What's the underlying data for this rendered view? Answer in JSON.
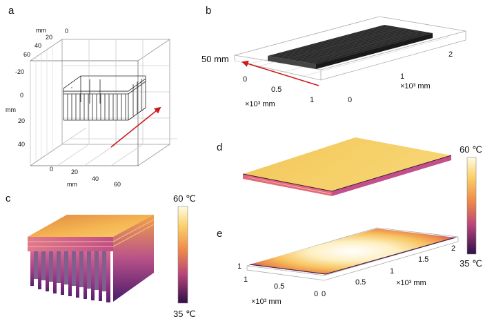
{
  "panels": {
    "a": {
      "label": "a",
      "unit": "mm",
      "top_ticks": [
        "0",
        "20",
        "40",
        "60"
      ],
      "left_ticks": [
        "-20",
        "0",
        "20",
        "40"
      ],
      "bottom_ticks_left": [
        "0",
        "20"
      ],
      "bottom_ticks_right": [
        "40",
        "60"
      ]
    },
    "b": {
      "label": "b",
      "height": "50 mm",
      "x_ticks": [
        "0",
        "0.5",
        "1"
      ],
      "y_ticks": [
        "0",
        "1",
        "2"
      ],
      "x_unit": "×10³ mm",
      "y_unit": "×10³ mm"
    },
    "c": {
      "label": "c",
      "cb_max": "60 ℃",
      "cb_min": "35 ℃"
    },
    "d": {
      "label": "d",
      "cb_max": "60 ℃",
      "cb_min": "35 ℃"
    },
    "e": {
      "label": "e",
      "x_ticks": [
        "1",
        "0.5",
        "0"
      ],
      "y_ticks": [
        "0",
        "0.5",
        "1",
        "1.5",
        "2"
      ],
      "z_tick": "1",
      "x_unit": "×10³ mm",
      "y_unit": "×10³ mm"
    }
  },
  "colors": {
    "arrow": "#cc1a1a",
    "hot": "#fde9a0",
    "mid": "#f3a54a",
    "cool": "#c24a7a",
    "cold": "#3a1152"
  }
}
